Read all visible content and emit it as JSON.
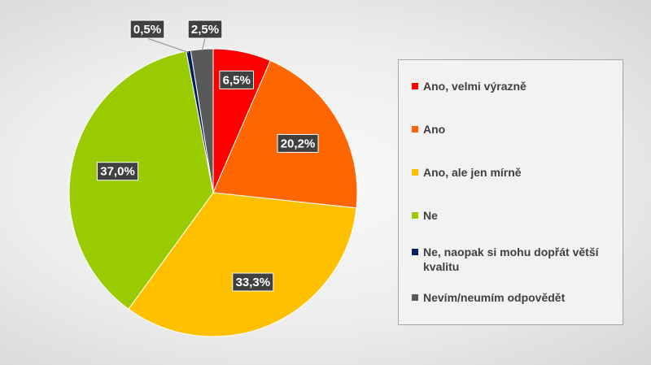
{
  "chart_data": {
    "type": "pie",
    "title": "",
    "start_angle_deg": 0,
    "direction": "clockwise",
    "legend_position": "right",
    "slices": [
      {
        "label": "Ano, velmi výrazně",
        "value": 6.5,
        "display": "6,5%",
        "color": "#ff0000"
      },
      {
        "label": "Ano",
        "value": 20.2,
        "display": "20,2%",
        "color": "#ff6600"
      },
      {
        "label": "Ano, ale jen mírně",
        "value": 33.3,
        "display": "33,3%",
        "color": "#ffc000"
      },
      {
        "label": "Ne",
        "value": 37.0,
        "display": "37,0%",
        "color": "#99cc00"
      },
      {
        "label": "Ne, naopak si mohu dopřát větší kvalitu",
        "value": 0.5,
        "display": "0,5%",
        "color": "#002060"
      },
      {
        "label": "Nevím/neumím odpovědět",
        "value": 2.5,
        "display": "2,5%",
        "color": "#595959"
      }
    ]
  }
}
